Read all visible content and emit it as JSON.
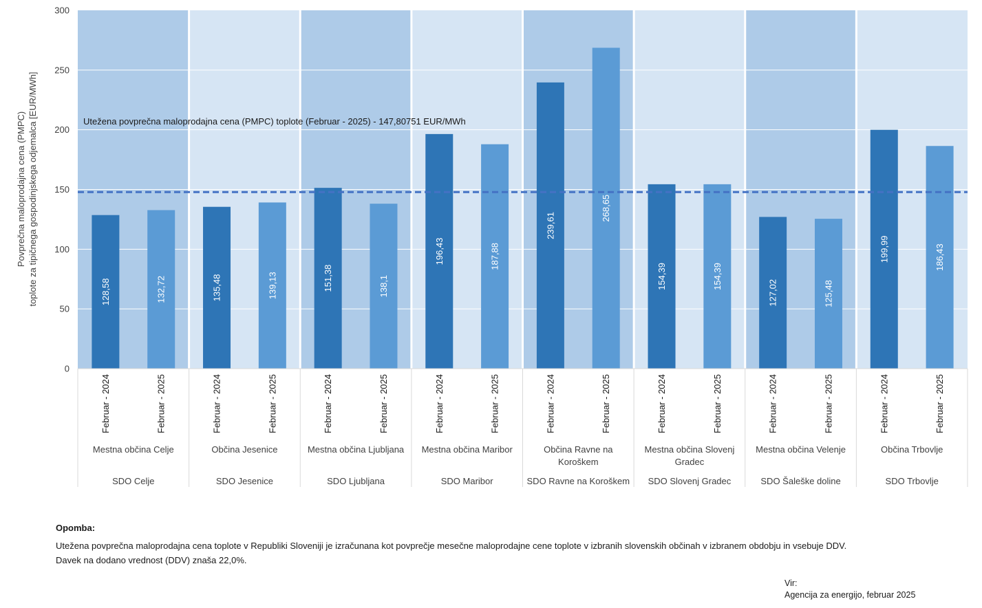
{
  "chart_data": {
    "type": "bar",
    "ylabel_line1": "Povprečna maloprodajna cena (PMPC)",
    "ylabel_line2": "toplote za tipičnega gospodinjskega odjemalca  [EUR/MWh]",
    "ylim": [
      0,
      300
    ],
    "yticks": [
      "0",
      "50",
      "100",
      "150",
      "200",
      "250",
      "300"
    ],
    "reference_line": {
      "value": 147.80751,
      "label": "Utežena povprečna maloprodajna cena (PMPC) toplote (Februar - 2025) - 147,80751  EUR/MWh"
    },
    "period_labels": [
      "Februar - 2024",
      "Februar - 2025"
    ],
    "groups": [
      {
        "sdo": "SDO Celje",
        "municipality": [
          "Mestna občina Celje"
        ],
        "values": [
          128.58,
          132.72
        ],
        "labels": [
          "128,58",
          "132,72"
        ]
      },
      {
        "sdo": "SDO Jesenice",
        "municipality": [
          "Občina Jesenice"
        ],
        "values": [
          135.48,
          139.13
        ],
        "labels": [
          "135,48",
          "139,13"
        ]
      },
      {
        "sdo": "SDO Ljubljana",
        "municipality": [
          "Mestna občina Ljubljana"
        ],
        "values": [
          151.38,
          138.1
        ],
        "labels": [
          "151,38",
          "138,1"
        ]
      },
      {
        "sdo": "SDO Maribor",
        "municipality": [
          "Mestna občina Maribor"
        ],
        "values": [
          196.43,
          187.88
        ],
        "labels": [
          "196,43",
          "187,88"
        ]
      },
      {
        "sdo": "SDO Ravne na Koroškem",
        "municipality": [
          "Občina Ravne na",
          "Koroškem"
        ],
        "values": [
          239.61,
          268.65
        ],
        "labels": [
          "239,61",
          "268,65"
        ]
      },
      {
        "sdo": "SDO Slovenj Gradec",
        "municipality": [
          "Mestna občina Slovenj",
          "Gradec"
        ],
        "values": [
          154.39,
          154.39
        ],
        "labels": [
          "154,39",
          "154,39"
        ]
      },
      {
        "sdo": "SDO Šaleške doline",
        "municipality": [
          "Mestna občina Velenje"
        ],
        "values": [
          127.02,
          125.48
        ],
        "labels": [
          "127,02",
          "125,48"
        ]
      },
      {
        "sdo": "SDO Trbovlje",
        "municipality": [
          "Občina Trbovlje"
        ],
        "values": [
          199.99,
          186.43
        ],
        "labels": [
          "199,99",
          "186,43"
        ]
      }
    ],
    "colors": {
      "bar_2024": "#2e75b6",
      "bar_2025": "#5b9bd5",
      "band_dark": "#aecbe8",
      "band_light": "#d6e5f4",
      "reference_line": "#4472c4",
      "gridline": "#ffffff"
    }
  },
  "note": {
    "title": "Opomba:",
    "line1": "Utežena povprečna maloprodajna cena toplote v Republiki Sloveniji je izračunana kot povprečje mesečne maloprodajne cene toplote v izbranih slovenskih občinah v izbranem obdobju in vsebuje DDV.",
    "line2": "Davek na dodano vrednost (DDV) znaša 22,0%."
  },
  "source": {
    "label": "Vir:",
    "text": "Agencija za energijo, februar 2025"
  }
}
